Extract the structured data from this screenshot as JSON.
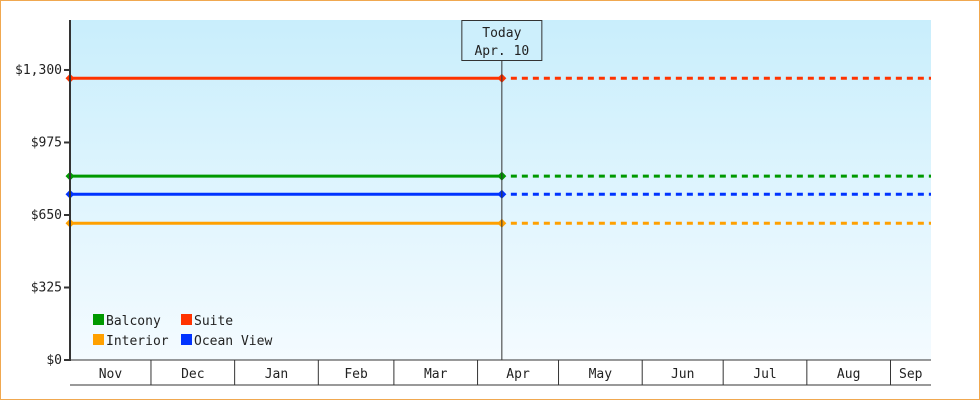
{
  "chart_data": {
    "type": "line",
    "title": "",
    "xlabel": "",
    "ylabel": "",
    "x_range": [
      "2024-11-01",
      "2025-09-16"
    ],
    "ylim": [
      0,
      1524
    ],
    "y_ticks": [
      0,
      325,
      650,
      975,
      1300
    ],
    "y_tick_labels": [
      "$0",
      "$325",
      "$650",
      "$975",
      "$1,300"
    ],
    "x_tick_labels": [
      "Nov",
      "Dec",
      "Jan",
      "Feb",
      "Mar",
      "Apr",
      "May",
      "Jun",
      "Jul",
      "Aug",
      "Sep"
    ],
    "x_month_starts": [
      "2024-11-01",
      "2024-12-01",
      "2025-01-01",
      "2025-02-01",
      "2025-03-01",
      "2025-04-01",
      "2025-05-01",
      "2025-06-01",
      "2025-07-01",
      "2025-08-01",
      "2025-09-01"
    ],
    "grid": false,
    "legend_placement": "bottom-left",
    "today": {
      "label_line1": "Today",
      "label_line2": "Apr. 10",
      "date": "2025-04-10"
    },
    "series": [
      {
        "name": "Balcony",
        "color": "#009900",
        "points": [
          [
            "2024-11-01",
            824
          ],
          [
            "2025-04-10",
            824
          ]
        ],
        "projected_to": "2025-09-16"
      },
      {
        "name": "Suite",
        "color": "#ff3300",
        "points": [
          [
            "2024-11-01",
            1263
          ],
          [
            "2025-04-10",
            1263
          ]
        ],
        "projected_to": "2025-09-16"
      },
      {
        "name": "Interior",
        "color": "#ffa000",
        "points": [
          [
            "2024-11-01",
            613
          ],
          [
            "2025-04-10",
            613
          ]
        ],
        "projected_to": "2025-09-16"
      },
      {
        "name": "Ocean View",
        "color": "#0033ff",
        "points": [
          [
            "2024-11-01",
            743
          ],
          [
            "2025-04-10",
            743
          ]
        ],
        "projected_to": "2025-09-16"
      }
    ],
    "background_gradient": [
      "#c9eefc",
      "#f4fbff"
    ],
    "frame_color": "#f0a850"
  }
}
